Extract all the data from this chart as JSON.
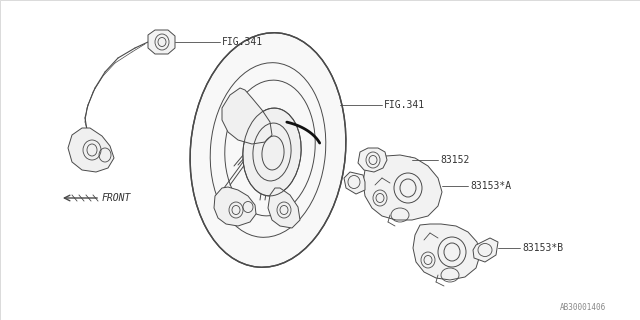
{
  "bg_color": "#ffffff",
  "line_color": "#4a4a4a",
  "text_color": "#333333",
  "fig_width": 6.4,
  "fig_height": 3.2,
  "dpi": 100,
  "labels": {
    "fig341_top": "FIG.341",
    "fig341_wheel": "FIG.341",
    "part83152": "83152",
    "part83153a": "83153*A",
    "part83153b": "83153*B",
    "front": "FRONT",
    "catalog_num": "AB30001406"
  }
}
